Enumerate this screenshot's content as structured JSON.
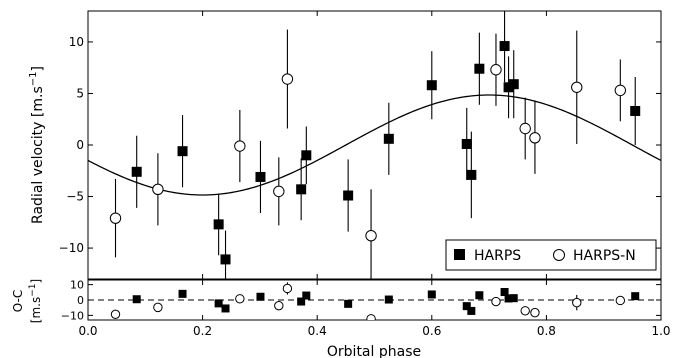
{
  "chart_data": [
    {
      "panel": "radial velocity",
      "type": "scatter",
      "xlabel": "",
      "ylabel": "Radial velocity [m.s",
      "ylabel_superscript": "−1",
      "ylabel_end": "]",
      "xlim": [
        0.0,
        1.0
      ],
      "ylim": [
        -13,
        13
      ],
      "yticks": [
        -10,
        -5,
        0,
        5,
        10
      ],
      "xticks": [
        0.0,
        0.2,
        0.4,
        0.6,
        0.8,
        1.0
      ],
      "legend": {
        "placement": "bottom-right",
        "entries": [
          "HARPS",
          "HARPS-N"
        ]
      },
      "model": {
        "type": "sinusoid",
        "amplitude": 4.85,
        "phase_at_minimum": 0.2,
        "offset": 0
      },
      "series": [
        {
          "name": "HARPS",
          "marker": "filled-square",
          "points": [
            {
              "x": 0.085,
              "y": -2.6,
              "err": 3.5
            },
            {
              "x": 0.165,
              "y": -0.6,
              "err": 3.5
            },
            {
              "x": 0.228,
              "y": -7.7,
              "err": 3.0
            },
            {
              "x": 0.24,
              "y": -11.1,
              "err": 2.8
            },
            {
              "x": 0.301,
              "y": -3.1,
              "err": 3.5
            },
            {
              "x": 0.372,
              "y": -4.3,
              "err": 3.0
            },
            {
              "x": 0.381,
              "y": -1.0,
              "err": 2.8
            },
            {
              "x": 0.454,
              "y": -4.9,
              "err": 3.5
            },
            {
              "x": 0.525,
              "y": 0.6,
              "err": 3.5
            },
            {
              "x": 0.6,
              "y": 5.8,
              "err": 3.3
            },
            {
              "x": 0.661,
              "y": 0.1,
              "err": 3.5
            },
            {
              "x": 0.669,
              "y": -2.9,
              "err": 4.2
            },
            {
              "x": 0.683,
              "y": 7.4,
              "err": 3.5
            },
            {
              "x": 0.727,
              "y": 9.6,
              "err": 3.5
            },
            {
              "x": 0.734,
              "y": 5.6,
              "err": 3.0
            },
            {
              "x": 0.743,
              "y": 5.9,
              "err": 3.3
            },
            {
              "x": 0.955,
              "y": 3.3,
              "err": 3.3
            }
          ]
        },
        {
          "name": "HARPS-N",
          "marker": "open-circle",
          "points": [
            {
              "x": 0.048,
              "y": -7.1,
              "err": 3.8
            },
            {
              "x": 0.122,
              "y": -4.3,
              "err": 3.5
            },
            {
              "x": 0.265,
              "y": -0.1,
              "err": 3.5
            },
            {
              "x": 0.333,
              "y": -4.5,
              "err": 3.3
            },
            {
              "x": 0.348,
              "y": 6.4,
              "err": 4.8
            },
            {
              "x": 0.494,
              "y": -8.8,
              "err": 4.5
            },
            {
              "x": 0.712,
              "y": 7.3,
              "err": 3.5
            },
            {
              "x": 0.763,
              "y": 1.6,
              "err": 3.0
            },
            {
              "x": 0.78,
              "y": 0.7,
              "err": 3.5
            },
            {
              "x": 0.853,
              "y": 5.6,
              "err": 5.5
            },
            {
              "x": 0.929,
              "y": 5.3,
              "err": 3.0
            }
          ]
        }
      ]
    },
    {
      "panel": "residuals",
      "type": "scatter",
      "xlabel": "Orbital phase",
      "ylabel": "O-C",
      "ylabel_line2": "[m.s",
      "ylabel_superscript": "−1",
      "ylabel_end": "]",
      "xlim": [
        0.0,
        1.0
      ],
      "ylim": [
        -13,
        13
      ],
      "yticks": [
        -10,
        0,
        10
      ],
      "xticks": [
        0.0,
        0.2,
        0.4,
        0.6,
        0.8,
        1.0
      ],
      "xticklabels": [
        "0.0",
        "0.2",
        "0.4",
        "0.6",
        "0.8",
        "1.0"
      ],
      "zero_line": "dashed",
      "series": [
        {
          "name": "HARPS",
          "marker": "filled-square",
          "points": [
            {
              "x": 0.085,
              "y": 0.5
            },
            {
              "x": 0.165,
              "y": 4.0
            },
            {
              "x": 0.228,
              "y": -2.2
            },
            {
              "x": 0.24,
              "y": -5.5
            },
            {
              "x": 0.301,
              "y": 2.1
            },
            {
              "x": 0.372,
              "y": -1.0
            },
            {
              "x": 0.381,
              "y": 2.9
            },
            {
              "x": 0.454,
              "y": -2.5
            },
            {
              "x": 0.525,
              "y": 0.3
            },
            {
              "x": 0.6,
              "y": 3.6
            },
            {
              "x": 0.661,
              "y": -4.0
            },
            {
              "x": 0.669,
              "y": -7.1
            },
            {
              "x": 0.683,
              "y": 3.1
            },
            {
              "x": 0.727,
              "y": 5.2
            },
            {
              "x": 0.734,
              "y": 1.0
            },
            {
              "x": 0.743,
              "y": 1.2
            },
            {
              "x": 0.955,
              "y": 2.5
            }
          ]
        },
        {
          "name": "HARPS-N",
          "marker": "open-circle",
          "points": [
            {
              "x": 0.048,
              "y": -9.3
            },
            {
              "x": 0.122,
              "y": -4.8
            },
            {
              "x": 0.265,
              "y": 0.8
            },
            {
              "x": 0.333,
              "y": -3.7
            },
            {
              "x": 0.348,
              "y": 7.5,
              "err": 4.0
            },
            {
              "x": 0.494,
              "y": -12.2
            },
            {
              "x": 0.712,
              "y": -1.0
            },
            {
              "x": 0.763,
              "y": -7.0
            },
            {
              "x": 0.78,
              "y": -8.2
            },
            {
              "x": 0.853,
              "y": -1.7,
              "err": 5.0
            },
            {
              "x": 0.929,
              "y": -0.3
            }
          ]
        }
      ]
    }
  ]
}
